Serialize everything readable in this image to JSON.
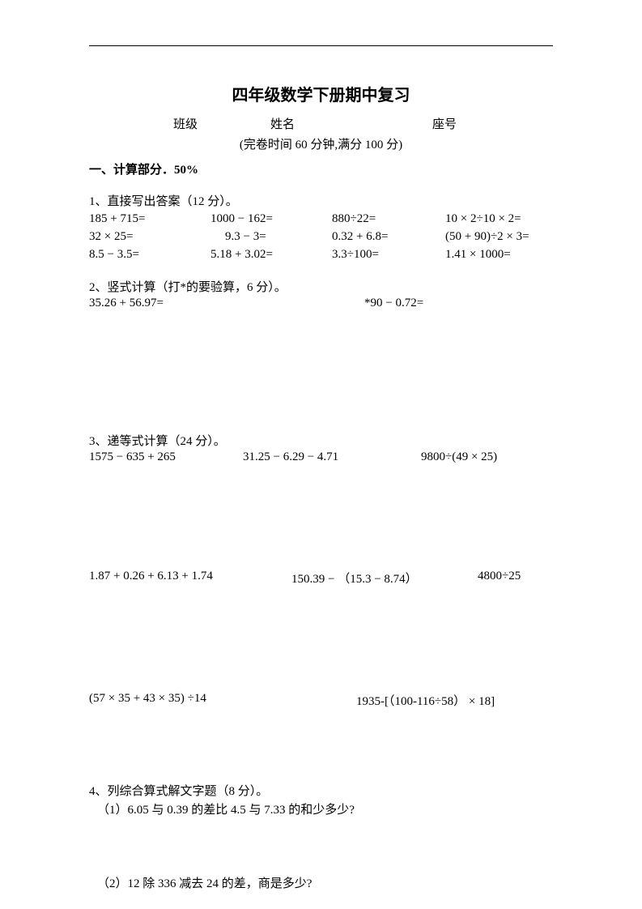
{
  "title": "四年级数学下册期中复习",
  "meta": {
    "class_label": "班级",
    "name_label": "姓名",
    "seat_label": "座号"
  },
  "time_note": "(完卷时间 60 分钟,满分 100 分)",
  "section1_head": "一、计算部分．50%",
  "q1": {
    "head": "1、直接写出答案（12 分）。",
    "row1": {
      "a": "185 + 715=",
      "b": "1000 − 162=",
      "c": "880÷22=",
      "d": "10 × 2÷10 × 2="
    },
    "row2": {
      "a": "32 × 25=",
      "b": "9.3 − 3=",
      "c": "0.32 + 6.8=",
      "d": "(50 + 90)÷2 × 3="
    },
    "row3": {
      "a": "8.5 − 3.5=",
      "b": "5.18 + 3.02=",
      "c": "3.3÷100=",
      "d": "1.41 × 1000="
    }
  },
  "q2": {
    "head": "2、竖式计算（打*的要验算，6 分）。",
    "a": "35.26 + 56.97=",
    "b": "*90 − 0.72="
  },
  "q3": {
    "head": "3、递等式计算（24 分）。",
    "r1": {
      "a": "1575 − 635 + 265",
      "b": "31.25 − 6.29 − 4.71",
      "c": "9800÷(49 × 25)"
    },
    "r2": {
      "a": "1.87 + 0.26 + 6.13 + 1.74",
      "b": "150.39 − （15.3 − 8.74）",
      "c": "4800÷25"
    },
    "r3": {
      "a": "(57 × 35 + 43 × 35) ÷14",
      "b": "1935-[（100-116÷58） × 18]"
    }
  },
  "q4": {
    "head": "4、列综合算式解文字题（8 分）。",
    "a": "（1）6.05 与 0.39 的差比 4.5 与 7.33 的和少多少?",
    "b": "（2）12 除 336 减去 24 的差，商是多少?"
  }
}
